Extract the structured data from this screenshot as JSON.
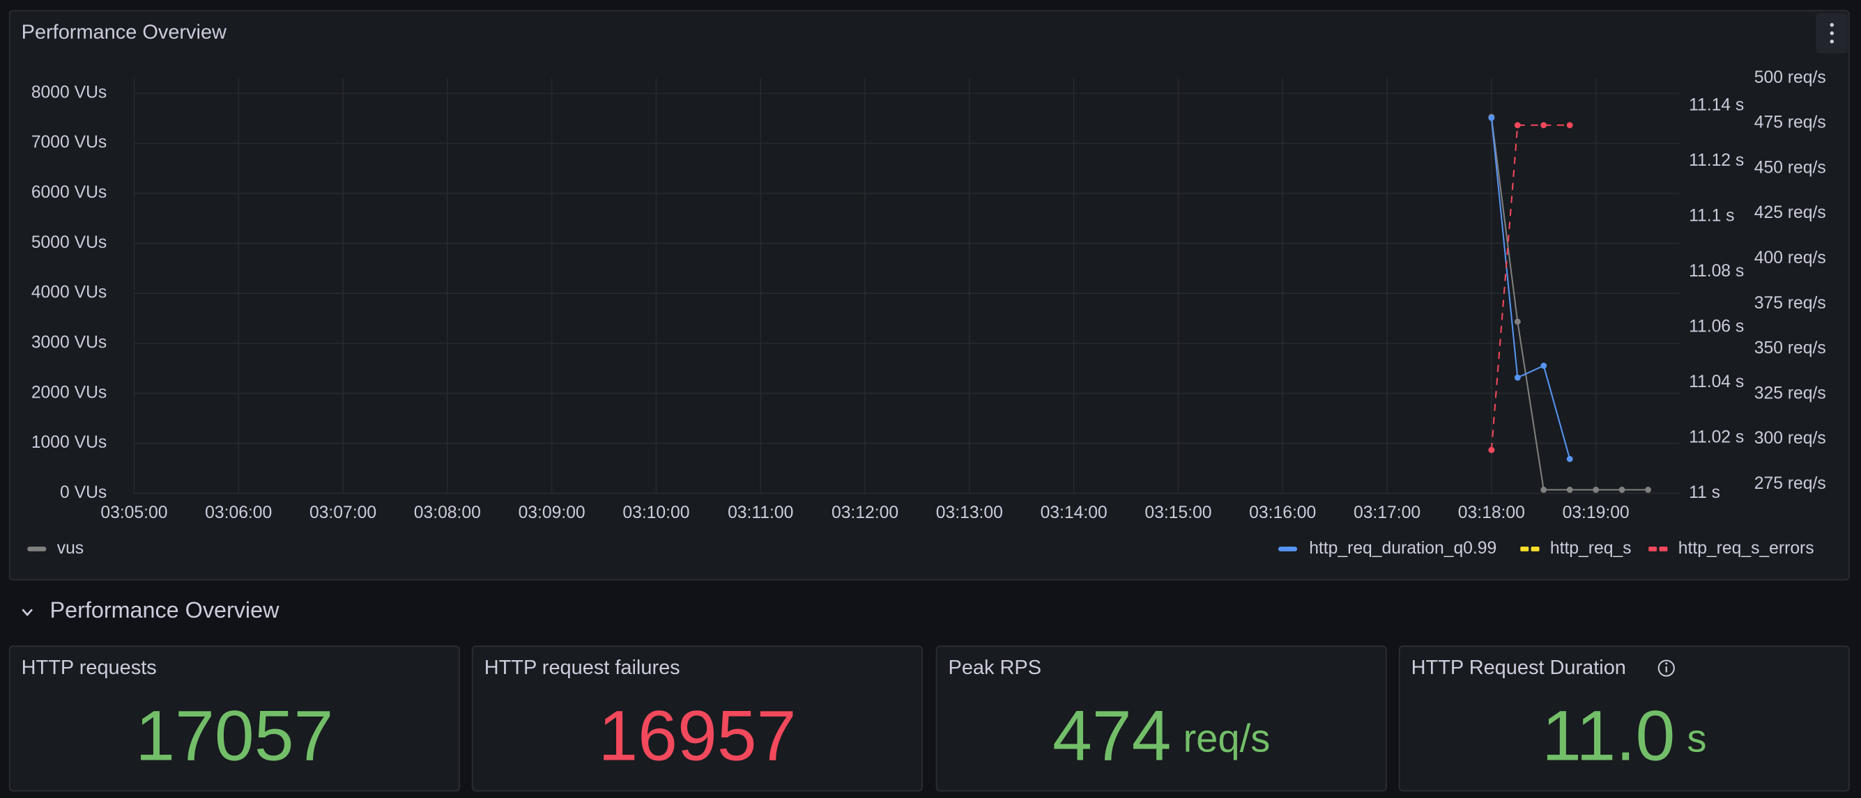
{
  "panel_title": "Performance Overview",
  "chart_data": {
    "type": "line",
    "x": [
      "03:18:00",
      "03:18:15",
      "03:18:30",
      "03:18:45",
      "03:19:00",
      "03:19:15",
      "03:19:30"
    ],
    "xlim": [
      "03:05:00",
      "03:19:48"
    ],
    "xticks": [
      "03:05:00",
      "03:06:00",
      "03:07:00",
      "03:08:00",
      "03:09:00",
      "03:10:00",
      "03:11:00",
      "03:12:00",
      "03:13:00",
      "03:14:00",
      "03:15:00",
      "03:16:00",
      "03:17:00",
      "03:18:00",
      "03:19:00"
    ],
    "ylim": [
      0,
      8300
    ],
    "yticks": [
      {
        "value": 0,
        "label": "0 VUs"
      },
      {
        "value": 1000,
        "label": "1000 VUs"
      },
      {
        "value": 2000,
        "label": "2000 VUs"
      },
      {
        "value": 3000,
        "label": "3000 VUs"
      },
      {
        "value": 4000,
        "label": "4000 VUs"
      },
      {
        "value": 5000,
        "label": "5000 VUs"
      },
      {
        "value": 6000,
        "label": "6000 VUs"
      },
      {
        "value": 7000,
        "label": "7000 VUs"
      },
      {
        "value": 8000,
        "label": "8000 VUs"
      }
    ],
    "y2lim": [
      11,
      11.15
    ],
    "y2ticks": [
      {
        "value": 11,
        "label": "11 s"
      },
      {
        "value": 11.02,
        "label": "11.02 s"
      },
      {
        "value": 11.04,
        "label": "11.04 s"
      },
      {
        "value": 11.06,
        "label": "11.06 s"
      },
      {
        "value": 11.08,
        "label": "11.08 s"
      },
      {
        "value": 11.1,
        "label": "11.1 s"
      },
      {
        "value": 11.12,
        "label": "11.12 s"
      },
      {
        "value": 11.14,
        "label": "11.14 s"
      }
    ],
    "y3lim": [
      270,
      500
    ],
    "y3ticks": [
      {
        "value": 275,
        "label": "275 req/s"
      },
      {
        "value": 300,
        "label": "300 req/s"
      },
      {
        "value": 325,
        "label": "325 req/s"
      },
      {
        "value": 350,
        "label": "350 req/s"
      },
      {
        "value": 375,
        "label": "375 req/s"
      },
      {
        "value": 400,
        "label": "400 req/s"
      },
      {
        "value": 425,
        "label": "425 req/s"
      },
      {
        "value": 450,
        "label": "450 req/s"
      },
      {
        "value": 475,
        "label": "475 req/s"
      },
      {
        "value": 500,
        "label": "500 req/s"
      }
    ],
    "grid": true,
    "series": [
      {
        "name": "vus",
        "color": "#808080",
        "axis": "y",
        "line_style": "solid",
        "values": [
          7527,
          3432,
          70,
          70,
          70,
          70,
          70
        ]
      },
      {
        "name": "http_req_duration_q0.99",
        "color": "#5794f2",
        "axis": "y2",
        "line_style": "solid",
        "values": [
          11.1357,
          11.0418,
          11.0461,
          11.0124,
          null,
          null,
          null
        ]
      },
      {
        "name": "http_req_s",
        "color": "#fade2a",
        "axis": "y3",
        "line_style": "dashed",
        "values": [
          null,
          null,
          null,
          null,
          null,
          null,
          null
        ]
      },
      {
        "name": "http_req_s_errors",
        "color": "#f2495c",
        "axis": "y3",
        "line_style": "dashed",
        "values": [
          294,
          474,
          474,
          474,
          null,
          null,
          null
        ]
      }
    ]
  },
  "row_title": "Performance Overview",
  "stats": [
    {
      "title": "HTTP requests",
      "value": 17057,
      "color": "#73bf69"
    },
    {
      "title": "HTTP request failures",
      "value": 16957,
      "color": "#f2495c"
    },
    {
      "title": "Peak RPS",
      "value": 474,
      "unit": "req/s",
      "color": "#73bf69"
    },
    {
      "title": "HTTP Request Duration",
      "value": "11.0",
      "unit": "s",
      "color": "#73bf69"
    }
  ]
}
